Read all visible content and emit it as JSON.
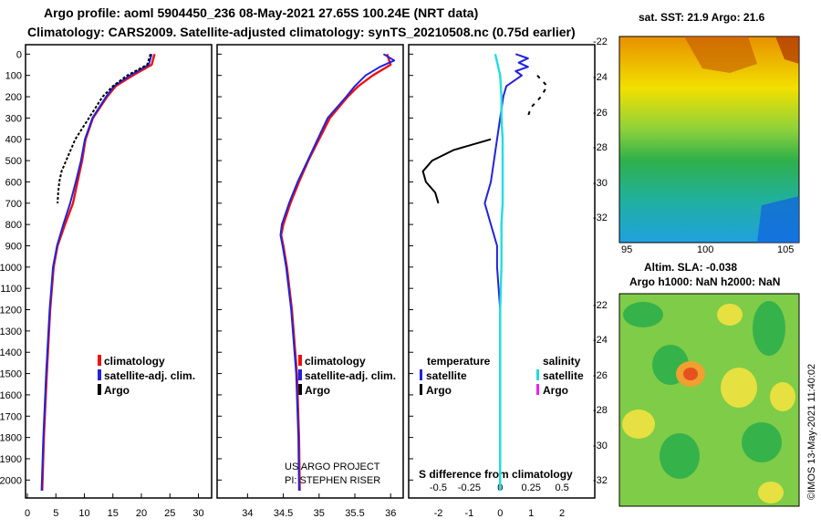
{
  "header": {
    "title_line1": "Argo profile: aoml 5904450_236 08-May-2021 27.65S 100.24E (NRT data)",
    "title_line2": "Climatology: CARS2009. Satellite-adjusted climatology: synTS_20210508.nc (0.75d earlier)"
  },
  "map_panels": {
    "sat_title": "sat. SST: 21.9 Argo: 21.6",
    "alt_title": "Altim. SLA: -0.038",
    "alt_subtitle": "Argo h1000: NaN h2000: NaN",
    "lat_ticks": [
      "-22",
      "-24",
      "-26",
      "-28",
      "-30",
      "-32"
    ],
    "lon_ticks": [
      "95",
      "100",
      "105"
    ],
    "footer_vertical": "©IMOS 13-May-2021 11:40:02"
  },
  "colors": {
    "climatology": "#ee1111",
    "satellite_adj": "#2222dd",
    "argo": "#000000",
    "sal_satellite": "#22dddd",
    "sal_argo": "#ee22ee"
  },
  "chart_data": [
    {
      "type": "line",
      "name": "temperature_profile",
      "xlabel": "",
      "ylabel": "",
      "xlim": [
        0,
        32
      ],
      "ylim": [
        2080,
        -40
      ],
      "x_ticks": [
        0,
        5,
        10,
        15,
        20,
        25,
        30
      ],
      "depth_ticks": [
        0,
        100,
        200,
        300,
        400,
        500,
        600,
        700,
        800,
        900,
        1000,
        1100,
        1200,
        1300,
        1400,
        1500,
        1600,
        1700,
        1800,
        1900,
        2000
      ],
      "legend": [
        "climatology",
        "satellite-adj. clim.",
        "Argo"
      ],
      "series": [
        {
          "name": "climatology",
          "depth": [
            0,
            50,
            100,
            150,
            200,
            300,
            400,
            500,
            600,
            700,
            800,
            900,
            1000,
            1200,
            1500,
            1800,
            2050
          ],
          "values": [
            22.3,
            21.8,
            18.5,
            15.5,
            14.0,
            11.5,
            10.2,
            9.6,
            8.8,
            8.0,
            6.6,
            5.3,
            4.6,
            4.0,
            3.4,
            2.9,
            2.6
          ]
        },
        {
          "name": "satellite-adj. clim.",
          "depth": [
            0,
            50,
            100,
            150,
            200,
            300,
            400,
            500,
            600,
            700,
            800,
            900,
            1000,
            1200,
            1500,
            1800,
            2050
          ],
          "values": [
            21.8,
            21.3,
            18.0,
            15.2,
            13.8,
            11.4,
            10.1,
            9.4,
            8.5,
            7.5,
            6.3,
            5.2,
            4.5,
            3.9,
            3.3,
            2.8,
            2.5
          ]
        },
        {
          "name": "Argo",
          "depth": [
            0,
            50,
            100,
            150,
            200,
            300,
            400,
            450,
            500,
            550,
            600,
            650,
            700
          ],
          "values": [
            21.6,
            21.0,
            17.5,
            15.0,
            13.2,
            10.8,
            8.4,
            7.6,
            6.8,
            6.0,
            5.6,
            5.4,
            5.3
          ]
        }
      ]
    },
    {
      "type": "line",
      "name": "salinity_profile",
      "xlim": [
        33.6,
        36.15
      ],
      "ylim": [
        2080,
        -40
      ],
      "x_ticks": [
        34,
        34.5,
        35,
        35.5,
        36
      ],
      "legend": [
        "climatology",
        "satellite-adj. clim.",
        "Argo"
      ],
      "annotation": [
        "US ARGO PROJECT",
        "PI: STEPHEN RISER"
      ],
      "series": [
        {
          "name": "climatology",
          "depth": [
            0,
            50,
            100,
            150,
            200,
            300,
            400,
            500,
            600,
            700,
            800,
            850,
            900,
            1000,
            1200,
            1500,
            1800,
            2050
          ],
          "values": [
            35.95,
            36.0,
            35.75,
            35.55,
            35.4,
            35.15,
            35.0,
            34.85,
            34.72,
            34.6,
            34.5,
            34.47,
            34.5,
            34.55,
            34.62,
            34.69,
            34.72,
            34.73
          ]
        },
        {
          "name": "satellite-adj. clim.",
          "depth": [
            0,
            30,
            60,
            100,
            150,
            200,
            300,
            400,
            500,
            600,
            700,
            800,
            850,
            900,
            1000,
            1200,
            1500,
            1800,
            2050
          ],
          "values": [
            35.9,
            36.05,
            35.85,
            35.65,
            35.5,
            35.38,
            35.12,
            34.98,
            34.84,
            34.7,
            34.58,
            34.48,
            34.46,
            34.49,
            34.54,
            34.61,
            34.68,
            34.71,
            34.72
          ]
        }
      ]
    },
    {
      "type": "line",
      "name": "difference_profile",
      "xlim": [
        -2.9,
        3.0
      ],
      "ylim": [
        2080,
        -40
      ],
      "x_ticks_bottom": [
        "-0.5",
        "-0.25",
        "0",
        "0.25",
        "0.5"
      ],
      "x_ticks_top": [
        "-2",
        "-1",
        "0",
        "1",
        "2"
      ],
      "xlabel": "S difference from climatology",
      "legend_temperature": {
        "title": "temperature",
        "items": [
          "satellite",
          "Argo"
        ]
      },
      "legend_salinity": {
        "title": "salinity",
        "items": [
          "satellite",
          "Argo"
        ]
      },
      "series": [
        {
          "name": "temperature satellite",
          "depth": [
            0,
            20,
            40,
            60,
            80,
            100,
            150,
            200,
            300,
            400,
            500,
            600,
            700,
            800,
            900,
            1000,
            1200,
            1500,
            2050
          ],
          "values": [
            0.5,
            0.9,
            0.6,
            0.9,
            0.5,
            0.7,
            0.2,
            0.1,
            0.0,
            -0.1,
            -0.2,
            -0.3,
            -0.5,
            -0.3,
            -0.1,
            -0.1,
            0.0,
            0.0,
            0.0
          ]
        },
        {
          "name": "temperature Argo",
          "depth": [
            400,
            450,
            500,
            550,
            600,
            650,
            700
          ],
          "values": [
            -0.3,
            -1.5,
            -2.2,
            -2.5,
            -2.4,
            -2.1,
            -2.0
          ]
        },
        {
          "name": "salinity satellite",
          "depth": [
            0,
            100,
            200,
            300,
            400,
            500,
            600,
            700,
            800,
            900,
            1000,
            1200,
            1500,
            2050
          ],
          "values": [
            -0.04,
            0.0,
            0.01,
            0.01,
            0.02,
            0.02,
            0.02,
            0.02,
            0.01,
            0.01,
            0.01,
            0.0,
            0.0,
            0.0
          ]
        },
        {
          "name": "salinity Argo",
          "depth": [
            100,
            150,
            200,
            250,
            300
          ],
          "values": [
            0.3,
            0.38,
            0.33,
            0.25,
            0.22
          ]
        }
      ]
    }
  ]
}
